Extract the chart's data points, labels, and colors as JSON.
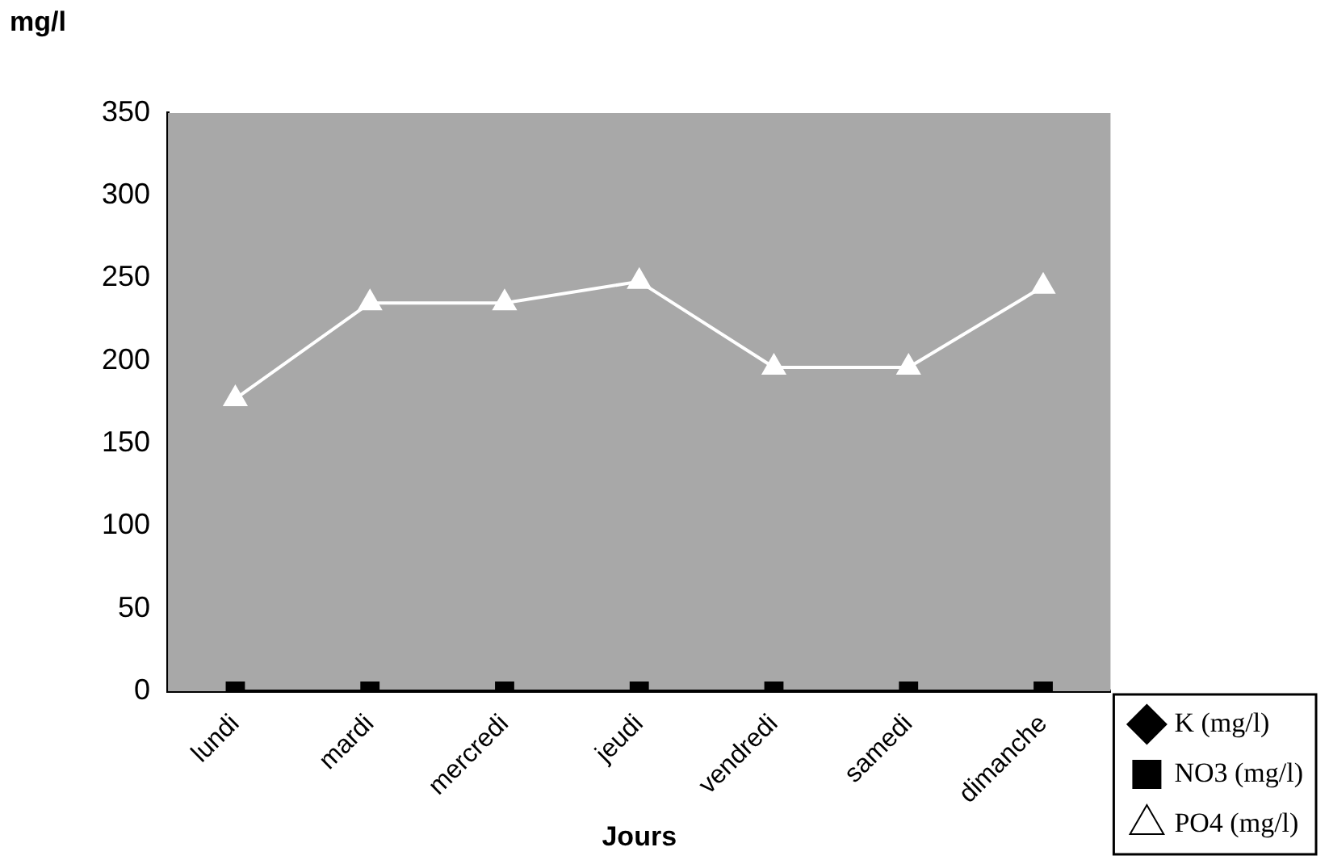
{
  "chart_data": {
    "type": "line",
    "ylabel": "mg/l",
    "xlabel": "Jours",
    "categories": [
      "lundi",
      "mardi",
      "mercredi",
      "jeudi",
      "vendredi",
      "samedi",
      "dimanche"
    ],
    "series": [
      {
        "name": "K (mg/l)",
        "color": "#000000",
        "marker": "diamond",
        "values": [
          null,
          null,
          null,
          null,
          null,
          null,
          null
        ]
      },
      {
        "name": "NO3 (mg/l)",
        "color": "#000000",
        "marker": "square",
        "values": [
          0,
          0,
          0,
          0,
          0,
          0,
          0
        ]
      },
      {
        "name": "PO4 (mg/l)",
        "color": "#ffffff",
        "marker": "triangle",
        "values": [
          177,
          235,
          235,
          248,
          196,
          196,
          245
        ]
      }
    ],
    "ylim": [
      0,
      350
    ],
    "yticks": [
      0,
      50,
      100,
      150,
      200,
      250,
      300,
      350
    ],
    "grid": false,
    "legend": "bottom right"
  }
}
